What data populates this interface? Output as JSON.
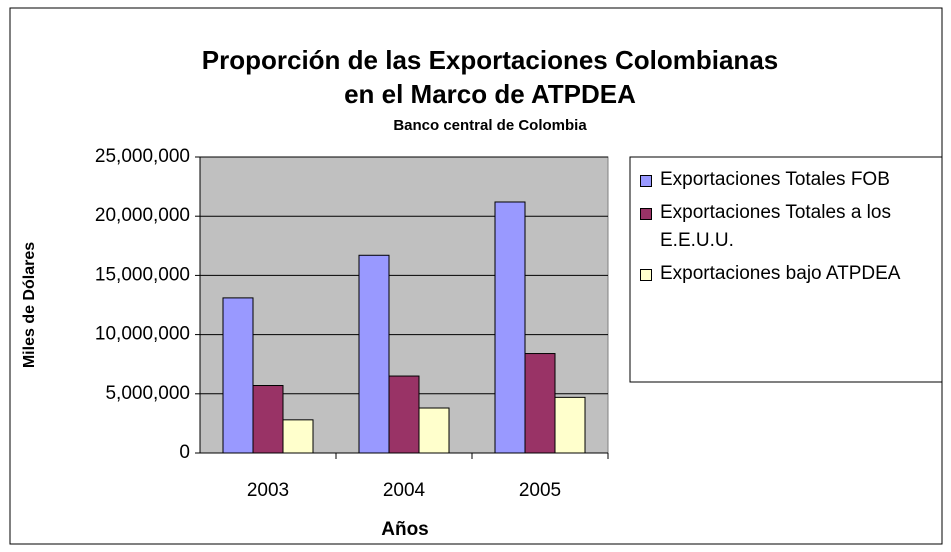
{
  "chart_data": {
    "type": "bar",
    "title": "Proporción de las Exportaciones Colombianas en el Marco de ATPDEA",
    "subtitle": "Banco central de Colombia",
    "x_label": "Años",
    "y_label": "Miles de Dólares",
    "categories": [
      "2003",
      "2004",
      "2005"
    ],
    "series": [
      {
        "name": "Exportaciones Totales FOB",
        "color": "#9999ff",
        "values": [
          13100000,
          16700000,
          21200000
        ]
      },
      {
        "name": "Exportaciones Totales a los E.E.U.U.",
        "color": "#993366",
        "values": [
          5700000,
          6500000,
          8400000
        ]
      },
      {
        "name": "Exportaciones bajo ATPDEA",
        "color": "#ffffcc",
        "values": [
          2800000,
          3800000,
          4700000
        ]
      }
    ],
    "ylim": [
      0,
      25000000
    ],
    "yticks": [
      0,
      {
        "value": 5000000,
        "label": "5,000,000"
      },
      {
        "value": 10000000,
        "label": "10,000,000"
      },
      {
        "value": 15000000,
        "label": "15,000,000"
      },
      {
        "value": 20000000,
        "label": "20,000,000"
      },
      {
        "value": 25000000,
        "label": "25,000,000"
      }
    ],
    "grid": true,
    "legend": "right"
  }
}
